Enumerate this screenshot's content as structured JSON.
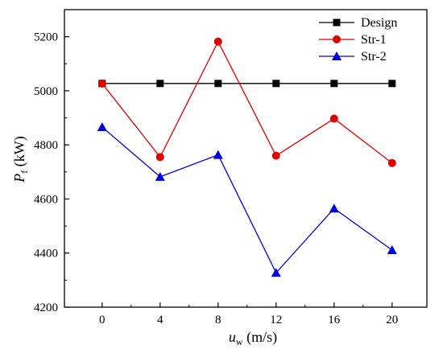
{
  "chart_data": {
    "type": "line",
    "x": [
      0,
      4,
      8,
      12,
      16,
      20
    ],
    "series": [
      {
        "name": "Design",
        "color": "#000000",
        "marker": "square",
        "values": [
          5027,
          5027,
          5027,
          5027,
          5027,
          5027
        ]
      },
      {
        "name": "Str-1",
        "color": "#e00000",
        "marker": "circle",
        "values": [
          5027,
          4755,
          5182,
          4760,
          4897,
          4733
        ]
      },
      {
        "name": "Str-2",
        "color": "#0000dd",
        "marker": "triangle",
        "values": [
          4866,
          4682,
          4763,
          4327,
          4565,
          4411
        ]
      }
    ],
    "xlabel": {
      "symbol": "u",
      "subscript": "w",
      "unit": " (m/s)"
    },
    "ylabel": {
      "symbol": "P",
      "subscript": "f",
      "unit": " (kW)"
    },
    "xticks": [
      0,
      4,
      8,
      12,
      16,
      20
    ],
    "yticks": [
      4200,
      4400,
      4600,
      4800,
      5000,
      5200
    ],
    "xlim": [
      -2.6,
      22.4
    ],
    "ylim": [
      4200,
      5300
    ],
    "grid": false,
    "legend_position": "top-right"
  }
}
